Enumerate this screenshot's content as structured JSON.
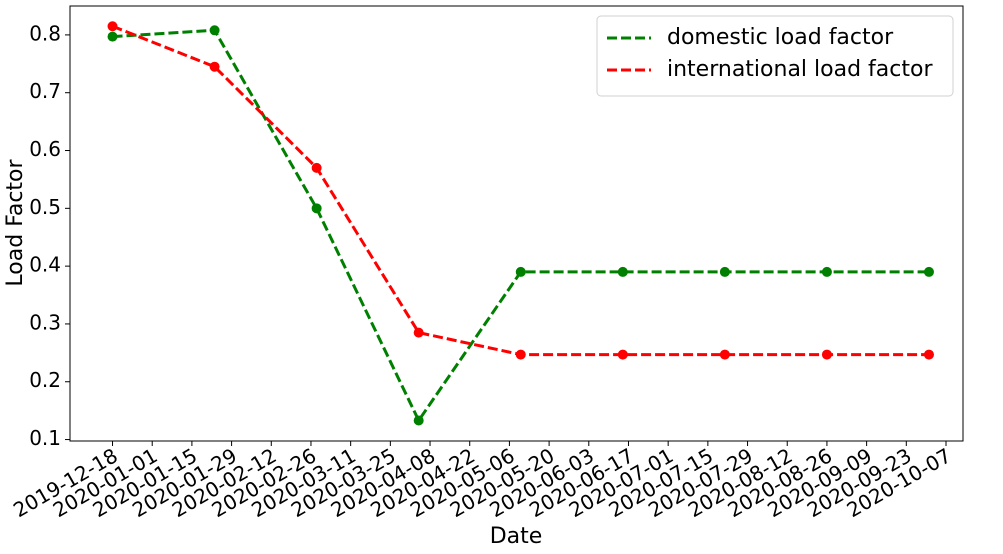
{
  "chart_data": {
    "type": "line",
    "x_label": "Date",
    "y_label": "Load Factor",
    "x": [
      "2019-12-18",
      "2020-01-23",
      "2020-02-28",
      "2020-04-04",
      "2020-05-10",
      "2020-06-15",
      "2020-07-21",
      "2020-08-26",
      "2020-10-01"
    ],
    "series": [
      {
        "name": "domestic load factor",
        "color": "#008000",
        "values": [
          0.797,
          0.808,
          0.5,
          0.133,
          0.39,
          0.39,
          0.39,
          0.39,
          0.39
        ]
      },
      {
        "name": "international load factor",
        "color": "#ff0000",
        "values": [
          0.815,
          0.745,
          0.57,
          0.285,
          0.247,
          0.247,
          0.247,
          0.247,
          0.247
        ]
      }
    ],
    "xlim": [
      "2019-12-03",
      "2020-10-13"
    ],
    "xticks": [
      "2019-12-18",
      "2020-01-01",
      "2020-01-15",
      "2020-01-29",
      "2020-02-12",
      "2020-02-26",
      "2020-03-11",
      "2020-03-25",
      "2020-04-08",
      "2020-04-22",
      "2020-05-06",
      "2020-05-20",
      "2020-06-03",
      "2020-06-17",
      "2020-07-01",
      "2020-07-15",
      "2020-07-29",
      "2020-08-12",
      "2020-08-26",
      "2020-09-09",
      "2020-09-23",
      "2020-10-07"
    ],
    "ylim": [
      0.0975,
      0.85
    ],
    "yticks": [
      0.1,
      0.2,
      0.3,
      0.4,
      0.5,
      0.6,
      0.7,
      0.8
    ],
    "line_style": "dashed",
    "markers": true,
    "grid": false,
    "legend": "upper right"
  }
}
